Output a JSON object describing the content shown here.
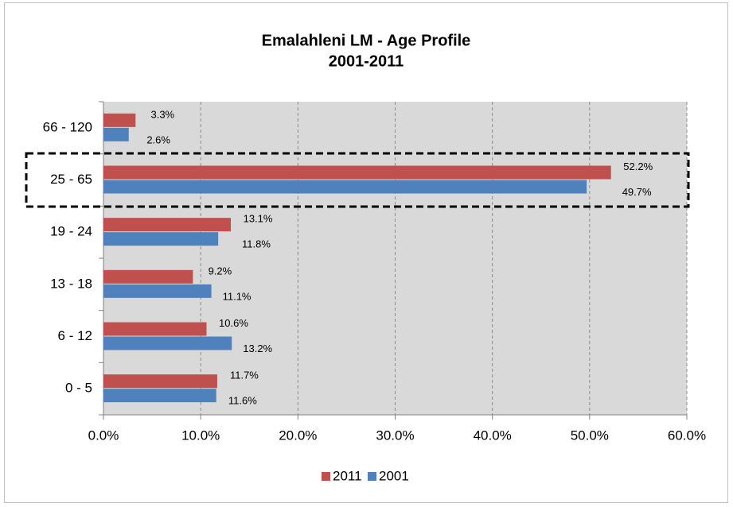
{
  "chart_data": {
    "type": "hbar",
    "title": "Emalahleni LM - Age Profile",
    "subtitle": "2001-2011",
    "categories": [
      "66 - 120",
      "25 - 65",
      "19 - 24",
      "13 - 18",
      "6 - 12",
      "0 - 5"
    ],
    "series": [
      {
        "name": "2011",
        "color": "#c0504d",
        "values": [
          3.3,
          52.2,
          13.1,
          9.2,
          10.6,
          11.7
        ],
        "value_labels": [
          "3.3%",
          "52.2%",
          "13.1%",
          "9.2%",
          "10.6%",
          "11.7%"
        ]
      },
      {
        "name": "2001",
        "color": "#4f81bd",
        "values": [
          2.6,
          49.7,
          11.8,
          11.1,
          13.2,
          11.6
        ],
        "value_labels": [
          "2.6%",
          "49.7%",
          "11.8%",
          "11.1%",
          "13.2%",
          "11.6%"
        ]
      }
    ],
    "xlim": [
      0,
      60
    ],
    "xticks": [
      {
        "value": 0,
        "label": "0.0%"
      },
      {
        "value": 10,
        "label": "10.0%"
      },
      {
        "value": 20,
        "label": "20.0%"
      },
      {
        "value": 30,
        "label": "30.0%"
      },
      {
        "value": 40,
        "label": "40.0%"
      },
      {
        "value": 50,
        "label": "50.0%"
      },
      {
        "value": 60,
        "label": "60.0%"
      }
    ],
    "grid": true,
    "legend": "bottom"
  }
}
